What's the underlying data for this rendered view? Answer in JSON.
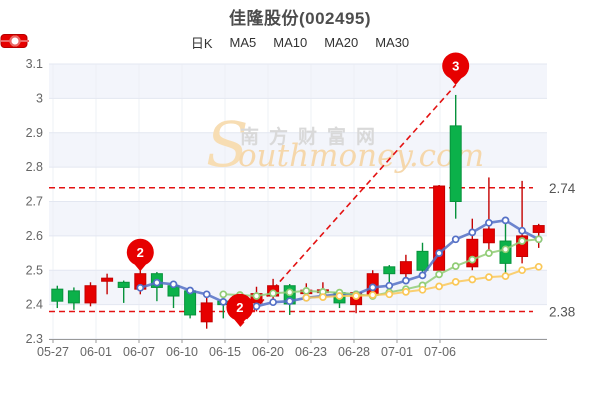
{
  "title": "佳隆股份(002495)",
  "legend": {
    "items": [
      {
        "label": "日K",
        "type": "rect",
        "color": "#e60000",
        "border": "#b50000"
      },
      {
        "label": "MA5",
        "type": "line",
        "color": "#5470c6"
      },
      {
        "label": "MA10",
        "type": "line",
        "color": "#91cc75"
      },
      {
        "label": "MA20",
        "type": "line",
        "color": "#fac858"
      },
      {
        "label": "MA30",
        "type": "line",
        "color": "#ee6666"
      }
    ]
  },
  "watermark": {
    "cn": "南方财富网",
    "en_initial": "S",
    "en_rest": "outhmoney.com"
  },
  "colors": {
    "candle_up": "#e60000",
    "candle_up_border": "#c40000",
    "candle_down": "#0bb14a",
    "candle_down_border": "#07923c",
    "ma5": "#5470c6",
    "ma10": "#91cc75",
    "ma20": "#fac858",
    "ma30": "#ee6666",
    "ref_line": "#e31212",
    "pin": "#e60000",
    "band": "#f3f5fb",
    "band_alt": "#ffffff",
    "grid": "#e3e7f1",
    "vgrid": "#eef0f6",
    "axis_line": "#999999",
    "tick_text": "#666666",
    "ref_text": "#555555"
  },
  "chart_data": {
    "type": "candlestick",
    "title": "佳隆股份(002495)",
    "ylim": [
      2.3,
      3.1
    ],
    "y_tick_labels": [
      "2.3",
      "2.4",
      "2.5",
      "2.6",
      "2.7",
      "2.8",
      "2.9",
      "3",
      "3.1"
    ],
    "x_tick_labels": [
      "05-27",
      "06-01",
      "06-07",
      "06-10",
      "06-15",
      "06-20",
      "06-23",
      "06-28",
      "07-01",
      "07-06"
    ],
    "grid": true,
    "legend_position": "top",
    "candles": [
      {
        "d": "05-27",
        "o": 2.445,
        "c": 2.41,
        "h": 2.455,
        "l": 2.39,
        "k": "down"
      },
      {
        "d": "05-28",
        "o": 2.44,
        "c": 2.405,
        "h": 2.45,
        "l": 2.385,
        "k": "down"
      },
      {
        "d": "05-31",
        "o": 2.405,
        "c": 2.455,
        "h": 2.465,
        "l": 2.395,
        "k": "up"
      },
      {
        "d": "06-01",
        "o": 2.468,
        "c": 2.477,
        "h": 2.49,
        "l": 2.43,
        "k": "up"
      },
      {
        "d": "06-02",
        "o": 2.465,
        "c": 2.45,
        "h": 2.47,
        "l": 2.405,
        "k": "down"
      },
      {
        "d": "06-03",
        "o": 2.445,
        "c": 2.49,
        "h": 2.5,
        "l": 2.43,
        "k": "up"
      },
      {
        "d": "06-04",
        "o": 2.49,
        "c": 2.45,
        "h": 2.495,
        "l": 2.41,
        "k": "down"
      },
      {
        "d": "06-07",
        "o": 2.455,
        "c": 2.425,
        "h": 2.46,
        "l": 2.39,
        "k": "down"
      },
      {
        "d": "06-08",
        "o": 2.44,
        "c": 2.37,
        "h": 2.45,
        "l": 2.36,
        "k": "down"
      },
      {
        "d": "06-09",
        "o": 2.35,
        "c": 2.405,
        "h": 2.425,
        "l": 2.33,
        "k": "up"
      },
      {
        "d": "06-10",
        "o": 2.41,
        "c": 2.4,
        "h": 2.43,
        "l": 2.36,
        "k": "down"
      },
      {
        "d": "06-11",
        "o": 2.4,
        "c": 2.388,
        "h": 2.41,
        "l": 2.345,
        "k": "down"
      },
      {
        "d": "06-15",
        "o": 2.405,
        "c": 2.432,
        "h": 2.452,
        "l": 2.38,
        "k": "up"
      },
      {
        "d": "06-16",
        "o": 2.425,
        "c": 2.455,
        "h": 2.475,
        "l": 2.41,
        "k": "up"
      },
      {
        "d": "06-17",
        "o": 2.455,
        "c": 2.402,
        "h": 2.46,
        "l": 2.37,
        "k": "down"
      },
      {
        "d": "06-18",
        "o": 2.432,
        "c": 2.442,
        "h": 2.462,
        "l": 2.42,
        "k": "up"
      },
      {
        "d": "06-21",
        "o": 2.435,
        "c": 2.443,
        "h": 2.465,
        "l": 2.425,
        "k": "up"
      },
      {
        "d": "06-22",
        "o": 2.435,
        "c": 2.405,
        "h": 2.44,
        "l": 2.39,
        "k": "down"
      },
      {
        "d": "06-23",
        "o": 2.4,
        "c": 2.435,
        "h": 2.44,
        "l": 2.375,
        "k": "up"
      },
      {
        "d": "06-24",
        "o": 2.43,
        "c": 2.49,
        "h": 2.5,
        "l": 2.425,
        "k": "up"
      },
      {
        "d": "06-25",
        "o": 2.51,
        "c": 2.49,
        "h": 2.515,
        "l": 2.445,
        "k": "down"
      },
      {
        "d": "06-28",
        "o": 2.49,
        "c": 2.525,
        "h": 2.545,
        "l": 2.47,
        "k": "up"
      },
      {
        "d": "06-29",
        "o": 2.555,
        "c": 2.5,
        "h": 2.58,
        "l": 2.49,
        "k": "down"
      },
      {
        "d": "06-30",
        "o": 2.5,
        "c": 2.745,
        "h": 2.748,
        "l": 2.49,
        "k": "up"
      },
      {
        "d": "07-01",
        "o": 2.92,
        "c": 2.7,
        "h": 3.01,
        "l": 2.65,
        "k": "down"
      },
      {
        "d": "07-02",
        "o": 2.51,
        "c": 2.59,
        "h": 2.65,
        "l": 2.5,
        "k": "up"
      },
      {
        "d": "07-05",
        "o": 2.58,
        "c": 2.62,
        "h": 2.77,
        "l": 2.55,
        "k": "up"
      },
      {
        "d": "07-06",
        "o": 2.585,
        "c": 2.52,
        "h": 2.64,
        "l": 2.49,
        "k": "down"
      },
      {
        "d": "07-07",
        "o": 2.54,
        "c": 2.6,
        "h": 2.76,
        "l": 2.52,
        "k": "up"
      },
      {
        "d": "07-08",
        "o": 2.61,
        "c": 2.63,
        "h": 2.635,
        "l": 2.565,
        "k": "up"
      }
    ],
    "series": [
      {
        "name": "MA5",
        "values": [
          null,
          null,
          null,
          null,
          null,
          2.449,
          2.464,
          2.459,
          2.441,
          2.43,
          2.408,
          2.4,
          2.395,
          2.407,
          2.41,
          2.42,
          2.425,
          2.43,
          2.43,
          2.45,
          2.455,
          2.47,
          2.485,
          2.55,
          2.59,
          2.61,
          2.638,
          2.645,
          2.615,
          2.59
        ]
      },
      {
        "name": "MA10",
        "values": [
          null,
          null,
          null,
          null,
          null,
          null,
          null,
          null,
          null,
          null,
          2.43,
          2.428,
          2.425,
          2.433,
          2.436,
          2.44,
          2.437,
          2.435,
          2.43,
          2.425,
          2.436,
          2.445,
          2.456,
          2.488,
          2.512,
          2.531,
          2.55,
          2.561,
          2.585,
          2.59
        ]
      },
      {
        "name": "MA20",
        "values": [
          null,
          null,
          null,
          null,
          null,
          null,
          null,
          null,
          null,
          null,
          null,
          null,
          null,
          null,
          null,
          2.42,
          2.422,
          2.425,
          2.425,
          2.428,
          2.43,
          2.437,
          2.443,
          2.453,
          2.466,
          2.473,
          2.48,
          2.483,
          2.5,
          2.51
        ]
      },
      {
        "name": "MA30",
        "values": [
          null,
          null,
          null,
          null,
          null,
          null,
          null,
          null,
          null,
          null,
          null,
          null,
          null,
          null,
          null,
          null,
          null,
          null,
          null,
          null,
          null,
          null,
          null,
          null,
          null,
          null,
          null,
          null,
          null,
          null
        ]
      }
    ],
    "ref_lines": [
      {
        "value": 2.74,
        "label": "2.74"
      },
      {
        "value": 2.38,
        "label": "2.38"
      }
    ],
    "pins": [
      {
        "label": "2",
        "index": 5,
        "tip_value": 2.497
      },
      {
        "label": "2",
        "index": 11,
        "tip_value": 2.337
      },
      {
        "label": "3",
        "index": 24,
        "tip_value": 3.039
      }
    ],
    "trend_line": {
      "from_index": 11,
      "from_value": 2.337,
      "to_index": 24,
      "to_value": 3.039
    }
  }
}
